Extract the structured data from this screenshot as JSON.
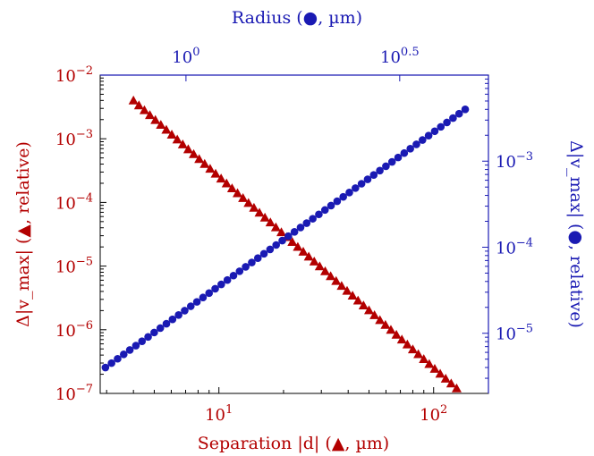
{
  "chart_data": {
    "type": "scatter",
    "title": "",
    "colors": {
      "red": "#b30000",
      "blue": "#1a1ab3",
      "axis": "#000000"
    },
    "bottom_axis": {
      "label": "Separation |d| (▲, µm)",
      "scale": "log",
      "range": [
        2.8,
        180
      ],
      "tick_labels": [
        {
          "value": 10,
          "base": "10",
          "exp": "1"
        },
        {
          "value": 100,
          "base": "10",
          "exp": "2"
        }
      ]
    },
    "left_axis": {
      "label": "Δ|v_max| (▲, relative)",
      "scale": "log",
      "range": [
        1e-07,
        0.01
      ],
      "tick_labels": [
        {
          "value": 0.01,
          "base": "10",
          "exp": "−2"
        },
        {
          "value": 0.001,
          "base": "10",
          "exp": "−3"
        },
        {
          "value": 0.0001,
          "base": "10",
          "exp": "−4"
        },
        {
          "value": 1e-05,
          "base": "10",
          "exp": "−5"
        },
        {
          "value": 1e-06,
          "base": "10",
          "exp": "−6"
        },
        {
          "value": 1e-07,
          "base": "10",
          "exp": "−7"
        }
      ]
    },
    "top_axis": {
      "label": "Radius (●, µm)",
      "scale": "log",
      "range": [
        0.63,
        5.1
      ],
      "tick_labels": [
        {
          "value": 1,
          "base": "10",
          "exp": "0"
        },
        {
          "value": 3.1623,
          "base": "10",
          "exp": "0.5"
        }
      ]
    },
    "right_axis": {
      "label": "Δ|v_max| (●, relative)",
      "scale": "log",
      "range": [
        2e-06,
        0.01
      ],
      "tick_labels": [
        {
          "value": 0.001,
          "base": "10",
          "exp": "−3"
        },
        {
          "value": 0.0001,
          "base": "10",
          "exp": "−4"
        },
        {
          "value": 1e-05,
          "base": "10",
          "exp": "−5"
        }
      ]
    },
    "series": [
      {
        "marker": "triangle",
        "color": "#b30000",
        "axes": "bottom-left",
        "x_from": 4,
        "x_to": 128,
        "y_from": 0.004,
        "y_to": 1.2e-07,
        "n": 60
      },
      {
        "marker": "circle",
        "color": "#1a1ab3",
        "axes": "top-right",
        "x_from": 0.648,
        "x_to": 4.5,
        "y_from": 4e-06,
        "y_to": 0.004,
        "n": 60
      }
    ],
    "grid": false
  }
}
